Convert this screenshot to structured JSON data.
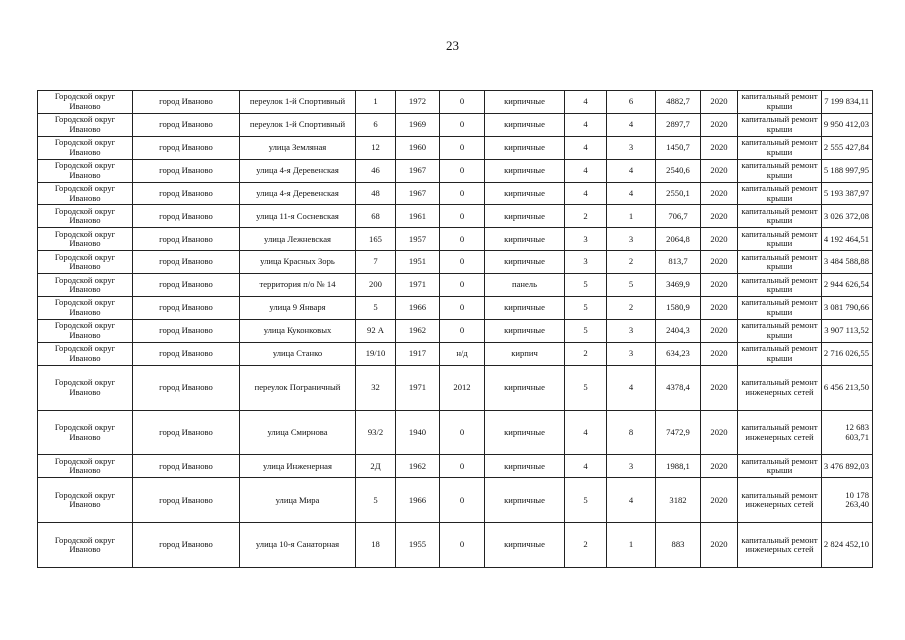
{
  "page_number": "23",
  "rows": [
    [
      "Городской округ Иваново",
      "город Иваново",
      "переулок 1-й Спортивный",
      "1",
      "1972",
      "0",
      "кирпичные",
      "4",
      "6",
      "4882,7",
      "2020",
      "капитальный ремонт крыши",
      "7 199 834,11"
    ],
    [
      "Городской округ Иваново",
      "город Иваново",
      "переулок 1-й Спортивный",
      "6",
      "1969",
      "0",
      "кирпичные",
      "4",
      "4",
      "2897,7",
      "2020",
      "капитальный ремонт крыши",
      "9 950 412,03"
    ],
    [
      "Городской округ Иваново",
      "город Иваново",
      "улица Земляная",
      "12",
      "1960",
      "0",
      "кирпичные",
      "4",
      "3",
      "1450,7",
      "2020",
      "капитальный ремонт крыши",
      "2 555 427,84"
    ],
    [
      "Городской округ Иваново",
      "город Иваново",
      "улица 4-я Деревенская",
      "46",
      "1967",
      "0",
      "кирпичные",
      "4",
      "4",
      "2540,6",
      "2020",
      "капитальный ремонт крыши",
      "5 188 997,95"
    ],
    [
      "Городской округ Иваново",
      "город Иваново",
      "улица 4-я Деревенская",
      "48",
      "1967",
      "0",
      "кирпичные",
      "4",
      "4",
      "2550,1",
      "2020",
      "капитальный ремонт крыши",
      "5 193 387,97"
    ],
    [
      "Городской округ Иваново",
      "город Иваново",
      "улица 11-я Сосневская",
      "68",
      "1961",
      "0",
      "кирпичные",
      "2",
      "1",
      "706,7",
      "2020",
      "капитальный ремонт крыши",
      "3 026 372,08"
    ],
    [
      "Городской округ Иваново",
      "город Иваново",
      "улица Лежневская",
      "165",
      "1957",
      "0",
      "кирпичные",
      "3",
      "3",
      "2064,8",
      "2020",
      "капитальный ремонт крыши",
      "4 192 464,51"
    ],
    [
      "Городской округ Иваново",
      "город Иваново",
      "улица Красных Зорь",
      "7",
      "1951",
      "0",
      "кирпичные",
      "3",
      "2",
      "813,7",
      "2020",
      "капитальный ремонт крыши",
      "3 484 588,88"
    ],
    [
      "Городской округ Иваново",
      "город Иваново",
      "территория п/о № 14",
      "200",
      "1971",
      "0",
      "панель",
      "5",
      "5",
      "3469,9",
      "2020",
      "капитальный ремонт крыши",
      "2 944 626,54"
    ],
    [
      "Городской округ Иваново",
      "город Иваново",
      "улица 9 Января",
      "5",
      "1966",
      "0",
      "кирпичные",
      "5",
      "2",
      "1580,9",
      "2020",
      "капитальный ремонт крыши",
      "3 081 790,66"
    ],
    [
      "Городской округ Иваново",
      "город Иваново",
      "улица Куконковых",
      "92 А",
      "1962",
      "0",
      "кирпичные",
      "5",
      "3",
      "2404,3",
      "2020",
      "капитальный ремонт крыши",
      "3 907 113,52"
    ],
    [
      "Городской округ Иваново",
      "город Иваново",
      "улица Станко",
      "19/10",
      "1917",
      "н/д",
      "кирпич",
      "2",
      "3",
      "634,23",
      "2020",
      "капитальный ремонт крыши",
      "2 716 026,55"
    ],
    [
      "Городской округ Иваново",
      "город Иваново",
      "переулок Пограничный",
      "32",
      "1971",
      "2012",
      "кирпичные",
      "5",
      "4",
      "4378,4",
      "2020",
      "капитальный ремонт инженерных сетей",
      "6 456 213,50"
    ],
    [
      "Городской округ Иваново",
      "город Иваново",
      "улица Смирнова",
      "93/2",
      "1940",
      "0",
      "кирпичные",
      "4",
      "8",
      "7472,9",
      "2020",
      "капитальный ремонт инженерных сетей",
      "12 683 603,71"
    ],
    [
      "Городской округ Иваново",
      "город Иваново",
      "улица Инженерная",
      "2Д",
      "1962",
      "0",
      "кирпичные",
      "4",
      "3",
      "1988,1",
      "2020",
      "капитальный ремонт крыши",
      "3 476 892,03"
    ],
    [
      "Городской округ Иваново",
      "город Иваново",
      "улица Мира",
      "5",
      "1966",
      "0",
      "кирпичные",
      "5",
      "4",
      "3182",
      "2020",
      "капитальный ремонт инженерных сетей",
      "10 178 263,40"
    ],
    [
      "Городской округ Иваново",
      "город Иваново",
      "улица 10-я Санаторная",
      "18",
      "1955",
      "0",
      "кирпичные",
      "2",
      "1",
      "883",
      "2020",
      "капитальный ремонт инженерных сетей",
      "2 824 452,10"
    ]
  ]
}
